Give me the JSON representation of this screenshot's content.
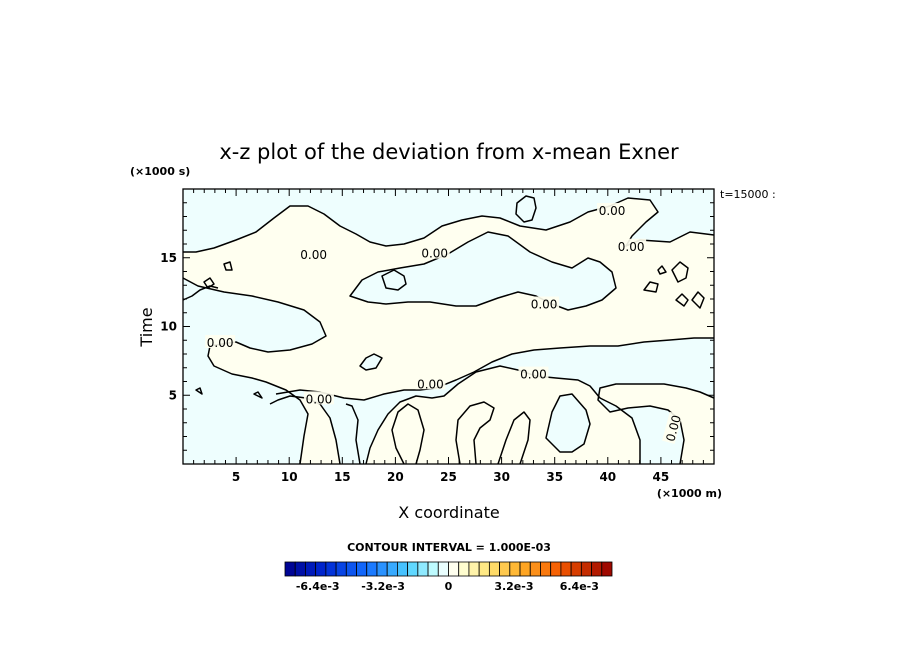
{
  "chart_data": {
    "type": "heatmap",
    "title": "x-z plot of the deviation from x-mean Exner",
    "xlabel": "X coordinate",
    "ylabel": "Time",
    "x_unit": "(×1000 m)",
    "y_unit": "(×1000 s)",
    "time_tag": "t=15000 :",
    "xlim": [
      0,
      50
    ],
    "ylim": [
      0,
      20
    ],
    "x_ticks": [
      5,
      10,
      15,
      20,
      25,
      30,
      35,
      40,
      45
    ],
    "y_ticks": [
      5,
      10,
      15
    ],
    "contour_level_label": "0.00",
    "contour_labels": [
      {
        "x": 12.3,
        "y": 15.2,
        "text": "0.00"
      },
      {
        "x": 23.7,
        "y": 15.3,
        "text": "0.00"
      },
      {
        "x": 40.4,
        "y": 18.4,
        "text": "0.00"
      },
      {
        "x": 42.2,
        "y": 15.8,
        "text": "0.00"
      },
      {
        "x": 34.0,
        "y": 11.6,
        "text": "0.00"
      },
      {
        "x": 3.5,
        "y": 8.8,
        "text": "0.00"
      },
      {
        "x": 12.8,
        "y": 4.7,
        "text": "0.00"
      },
      {
        "x": 23.3,
        "y": 5.8,
        "text": "0.00"
      },
      {
        "x": 33.0,
        "y": 6.5,
        "text": "0.00"
      },
      {
        "x": 46.2,
        "y": 2.6,
        "text": "0.00"
      }
    ],
    "contour_interval_text": "CONTOUR INTERVAL = 1.000E-03",
    "colorbar": {
      "min": -0.008,
      "max": 0.008,
      "levels": 32,
      "tick_values": [
        -0.0064,
        -0.0032,
        0,
        0.0032,
        0.0064
      ],
      "tick_labels": [
        "-6.4e-3",
        "-3.2e-3",
        "0",
        "3.2e-3",
        "6.4e-3"
      ]
    },
    "fill_colors": {
      "negative": "#eefefe",
      "positive": "#fffff0"
    }
  }
}
